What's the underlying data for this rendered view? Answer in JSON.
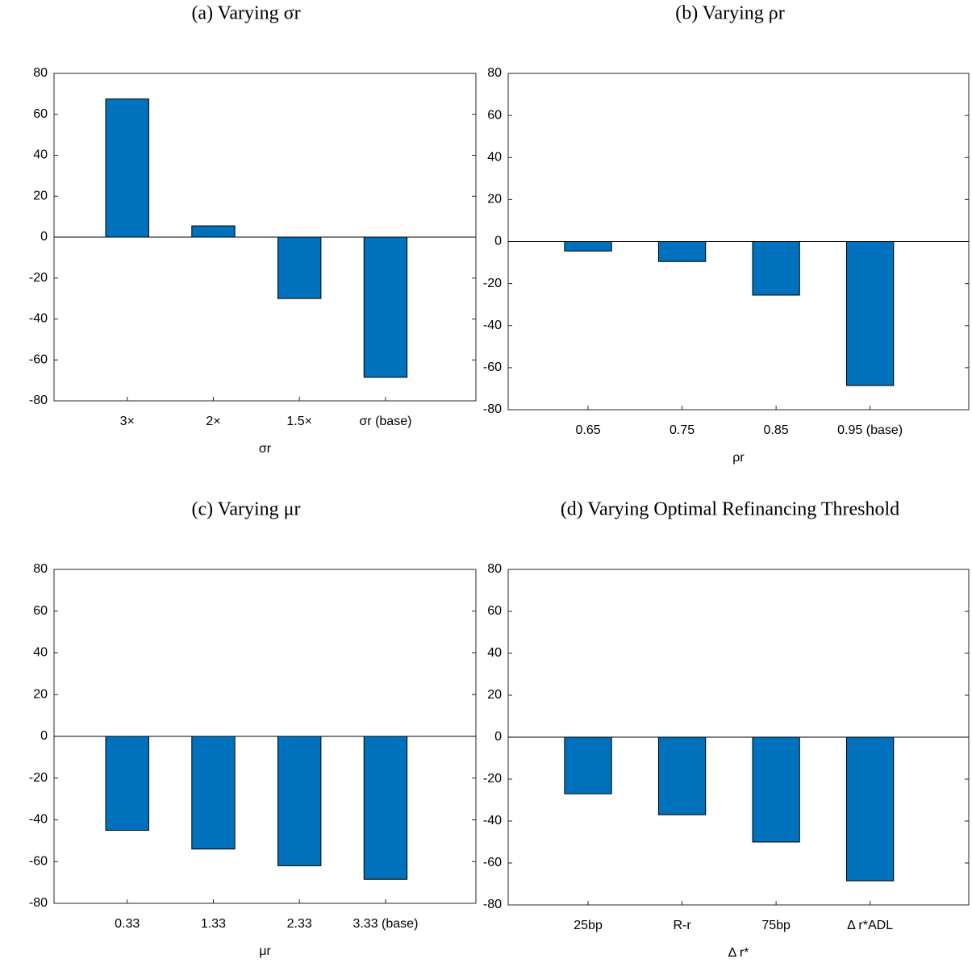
{
  "chart_data": [
    {
      "type": "bar",
      "title": "(a) Varying σr",
      "xlabel": "σr",
      "categories": [
        "3×",
        "2×",
        "1.5×",
        "σr (base)"
      ],
      "values": [
        67.5,
        5.5,
        -30,
        -68.5
      ],
      "color": "#0072bd",
      "ylim": [
        -80,
        80
      ],
      "yticks": [
        -80,
        -60,
        -40,
        -20,
        0,
        20,
        40,
        60,
        80
      ]
    },
    {
      "type": "bar",
      "title": "(b) Varying ρr",
      "xlabel": "ρr",
      "categories": [
        "0.65",
        "0.75",
        "0.85",
        "0.95 (base)"
      ],
      "values": [
        -4.5,
        -9.5,
        -25.5,
        -68.5
      ],
      "color": "#0072bd",
      "ylim": [
        -80,
        80
      ],
      "yticks": [
        -80,
        -60,
        -40,
        -20,
        0,
        20,
        40,
        60,
        80
      ]
    },
    {
      "type": "bar",
      "title": "(c) Varying μr",
      "xlabel": "μr",
      "categories": [
        "0.33",
        "1.33",
        "2.33",
        "3.33 (base)"
      ],
      "values": [
        -45,
        -54,
        -62,
        -68.5
      ],
      "color": "#0072bd",
      "ylim": [
        -80,
        80
      ],
      "yticks": [
        -80,
        -60,
        -40,
        -20,
        0,
        20,
        40,
        60,
        80
      ]
    },
    {
      "type": "bar",
      "title": "(d) Varying Optimal Refinancing Threshold",
      "xlabel": "Δ r*",
      "categories": [
        "25bp",
        "R-r",
        "75bp",
        "Δ r*ADL"
      ],
      "values": [
        -27,
        -37,
        -50,
        -68.5
      ],
      "color": "#0072bd",
      "ylim": [
        -80,
        80
      ],
      "yticks": [
        -80,
        -60,
        -40,
        -20,
        0,
        20,
        40,
        60,
        80
      ]
    }
  ]
}
